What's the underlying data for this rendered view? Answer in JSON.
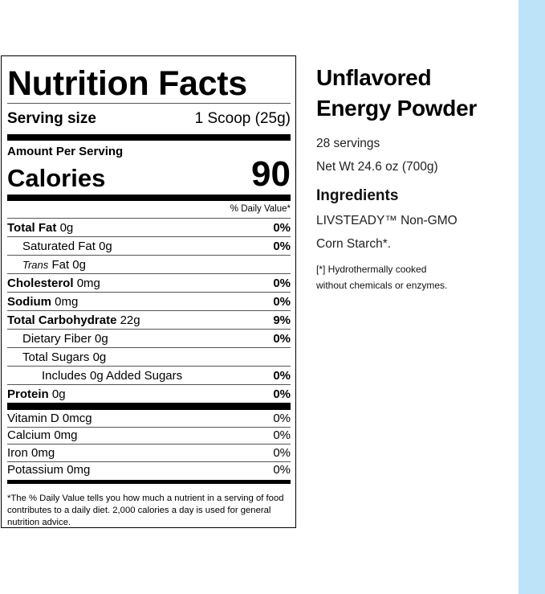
{
  "label": {
    "title": "Nutrition Facts",
    "serving_label": "Serving size",
    "serving_value": "1 Scoop (25g)",
    "amount_per_serving": "Amount Per Serving",
    "calories_label": "Calories",
    "calories_value": "90",
    "daily_value_header": "% Daily Value*",
    "nutrients": [
      {
        "name": "Total Fat",
        "amount": "0g",
        "dv": "0%",
        "bold": true,
        "indent": 0
      },
      {
        "name": "Saturated Fat",
        "amount": "0g",
        "dv": "0%",
        "indent": 1
      },
      {
        "name": "Trans",
        "name_suffix": "Fat",
        "amount": "0g",
        "dv": "",
        "indent": 1,
        "italic_prefix": true
      },
      {
        "name": "Cholesterol",
        "amount": "0mg",
        "dv": "0%",
        "bold": true,
        "indent": 0
      },
      {
        "name": "Sodium",
        "amount": "0mg",
        "dv": "0%",
        "bold": true,
        "indent": 0
      },
      {
        "name": "Total Carbohydrate",
        "amount": "22g",
        "dv": "9%",
        "bold": true,
        "indent": 0
      },
      {
        "name": "Dietary Fiber",
        "amount": "0g",
        "dv": "0%",
        "indent": 1
      },
      {
        "name": "Total Sugars",
        "amount": "0g",
        "dv": "",
        "indent": 1
      },
      {
        "name": "Includes 0g Added Sugars",
        "amount": "",
        "dv": "0%",
        "indent": 2
      },
      {
        "name": "Protein",
        "amount": "0g",
        "dv": "0%",
        "bold": true,
        "indent": 0
      }
    ],
    "vitamins": [
      {
        "name": "Vitamin D 0mcg",
        "dv": "0%"
      },
      {
        "name": "Calcium 0mg",
        "dv": "0%"
      },
      {
        "name": "Iron 0mg",
        "dv": "0%"
      },
      {
        "name": "Potassium 0mg",
        "dv": "0%"
      }
    ],
    "footnote": "*The % Daily Value tells you how much a nutrient in a serving of food contributes to a daily diet. 2,000 calories a day is used for general nutrition advice."
  },
  "product": {
    "name_line1": "Unflavored",
    "name_line2": "Energy Powder",
    "servings": "28 servings",
    "net_wt": "Net Wt 24.6 oz (700g)",
    "ingredients_heading": "Ingredients",
    "ingredients_line1": "LIVSTEADY™ Non-GMO",
    "ingredients_line2": "Corn Starch*.",
    "note_line1": "[*] Hydrothermally cooked",
    "note_line2": "without chemicals or enzymes."
  },
  "colors": {
    "accent_strip": "#bde3f8"
  }
}
